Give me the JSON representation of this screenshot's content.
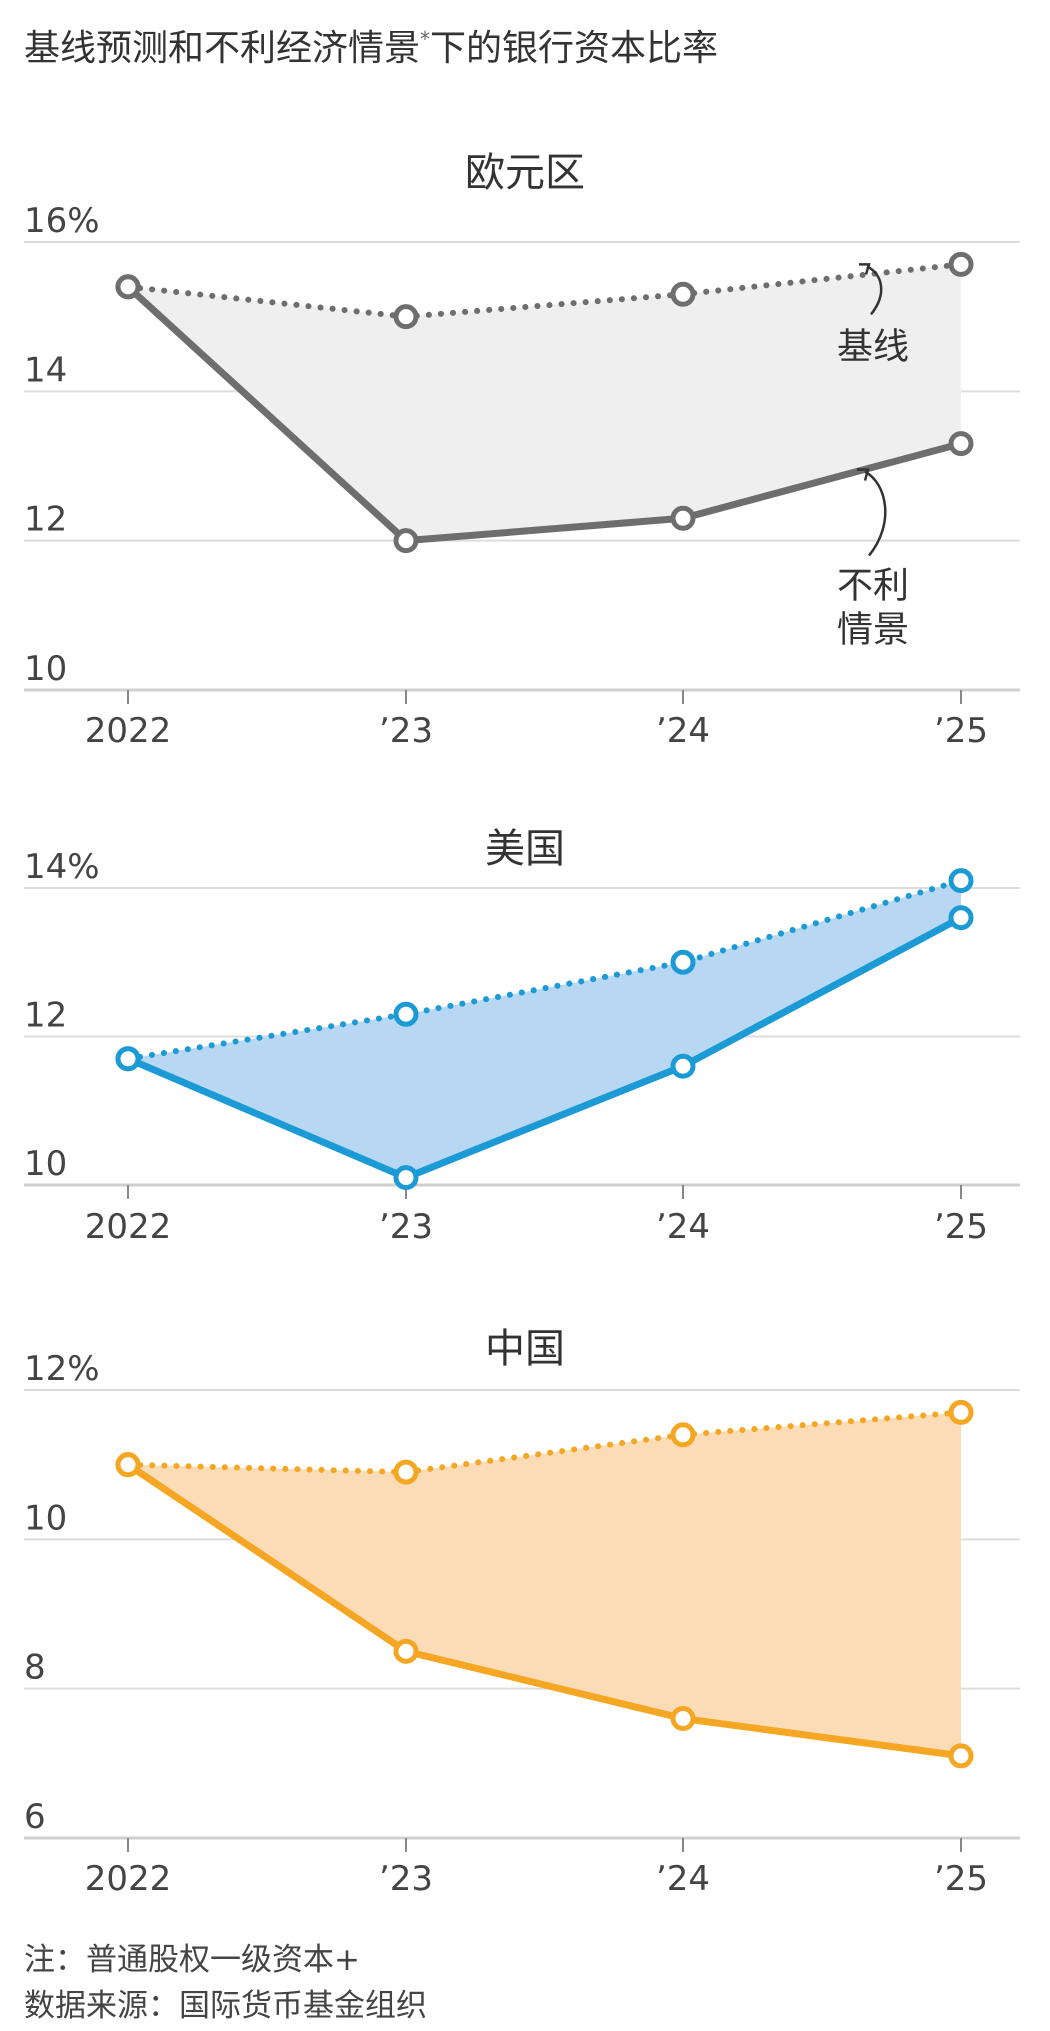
{
  "title": "基线预测和不利经济情景",
  "title_sup": "*",
  "title_rest": "下的银行资本比率",
  "note": "注：普通股权一级资本+",
  "source": "数据来源：国际货币基金组织",
  "colors": {
    "euro": "#6e6e6e",
    "euro_fill": "#efefef",
    "us": "#1b9ad6",
    "us_fill": "#b7d7f2",
    "china": "#f5a623",
    "china_fill": "#fcdcb7",
    "grid": "#dcdcdc",
    "axis": "#cfcfcf",
    "text": "#333333",
    "muted": "#444444"
  },
  "chart_data": [
    {
      "type": "line",
      "title": "欧元区",
      "categories": [
        "2022",
        "’23",
        "’24",
        "’25"
      ],
      "ylim": [
        10,
        16
      ],
      "yticks": [
        10,
        12,
        14,
        16
      ],
      "ytick_labels": [
        "10",
        "12",
        "14",
        "16%"
      ],
      "grid": true,
      "series": [
        {
          "name": "基线",
          "values": [
            15.4,
            15.0,
            15.3,
            15.7
          ],
          "style": "dotted"
        },
        {
          "name": "不利情景",
          "values": [
            15.4,
            12.0,
            12.3,
            13.3
          ],
          "style": "solid"
        }
      ],
      "annotations": [
        {
          "text": [
            "基线"
          ],
          "target": "基线"
        },
        {
          "text": [
            "不利",
            "情景"
          ],
          "target": "不利情景"
        }
      ]
    },
    {
      "type": "line",
      "title": "美国",
      "categories": [
        "2022",
        "’23",
        "’24",
        "’25"
      ],
      "ylim": [
        10,
        14
      ],
      "yticks": [
        10,
        12,
        14
      ],
      "ytick_labels": [
        "10",
        "12",
        "14%"
      ],
      "grid": true,
      "series": [
        {
          "values": [
            11.7,
            12.3,
            13.0,
            14.1
          ],
          "style": "dotted"
        },
        {
          "values": [
            11.7,
            10.1,
            11.6,
            13.6
          ],
          "style": "solid"
        }
      ]
    },
    {
      "type": "line",
      "title": "中国",
      "categories": [
        "2022",
        "’23",
        "’24",
        "’25"
      ],
      "ylim": [
        6,
        12
      ],
      "yticks": [
        6,
        8,
        10,
        12
      ],
      "ytick_labels": [
        "6",
        "8",
        "10",
        "12%"
      ],
      "grid": true,
      "series": [
        {
          "values": [
            11.0,
            10.9,
            11.4,
            11.7
          ],
          "style": "dotted"
        },
        {
          "values": [
            11.0,
            8.5,
            7.6,
            7.1
          ],
          "style": "solid"
        }
      ]
    }
  ]
}
